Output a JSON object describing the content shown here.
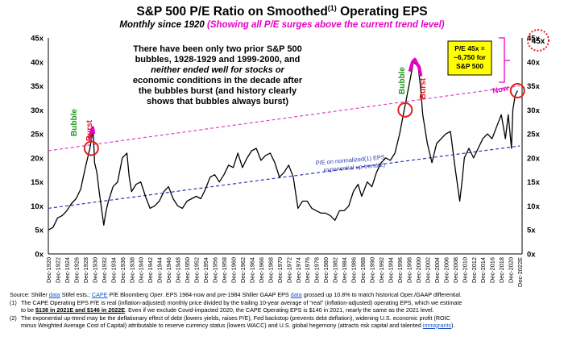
{
  "title": "S&P 500 P/E Ratio on Smoothed",
  "title_sup": "(1)",
  "title_end": " Operating EPS",
  "subtitle_black": "Monthly since 1920 ",
  "subtitle_pink": "(Showing all P/E surges above the current trend level)",
  "colors": {
    "line": "#000000",
    "bubble": "#e600c8",
    "trend": "#e040c8",
    "normalized": "#2a3ab0",
    "circle": "#e02020",
    "burst": "#e02020",
    "bubbleText": "#1a9a1a",
    "box": "#ffff00"
  },
  "chart_data": {
    "type": "line",
    "ylim": [
      0,
      45
    ],
    "yticks": [
      "0x",
      "5x",
      "10x",
      "15x",
      "20x",
      "25x",
      "30x",
      "35x",
      "40x",
      "45x"
    ],
    "xticks": [
      "Dec-1920",
      "Dec-1922",
      "Dec-1924",
      "Dec-1926",
      "Dec-1928",
      "Dec-1930",
      "Dec-1932",
      "Dec-1934",
      "Dec-1936",
      "Dec-1938",
      "Dec-1940",
      "Dec-1942",
      "Dec-1944",
      "Dec-1946",
      "Dec-1948",
      "Dec-1950",
      "Dec-1952",
      "Dec-1954",
      "Dec-1956",
      "Dec-1958",
      "Dec-1960",
      "Dec-1962",
      "Dec-1964",
      "Dec-1966",
      "Dec-1968",
      "Dec-1970",
      "Dec-1972",
      "Dec-1974",
      "Dec-1976",
      "Dec-1978",
      "Dec-1980",
      "Dec-1982",
      "Dec-1984",
      "Dec-1986",
      "Dec-1988",
      "Dec-1990",
      "Dec-1992",
      "Dec-1994",
      "Dec-1996",
      "Dec-1998",
      "Dec-2000",
      "Dec-2002",
      "Dec-2004",
      "Dec-2006",
      "Dec-2008",
      "Dec-2010",
      "Dec-2012",
      "Dec-2014",
      "Dec-2016",
      "Dec-2018",
      "Dec-2020",
      "Dec-2022E"
    ],
    "series": [
      {
        "values": [
          [
            1920,
            5
          ],
          [
            1921,
            5.5
          ],
          [
            1922,
            7.5
          ],
          [
            1923,
            8
          ],
          [
            1924,
            9
          ],
          [
            1925,
            10.5
          ],
          [
            1926,
            11.5
          ],
          [
            1927,
            13.5
          ],
          [
            1928,
            18
          ],
          [
            1929,
            22
          ],
          [
            1929.7,
            26
          ],
          [
            1930,
            19
          ],
          [
            1930.5,
            17
          ],
          [
            1931,
            13
          ],
          [
            1932,
            6
          ],
          [
            1932.5,
            9
          ],
          [
            1933,
            11
          ],
          [
            1934,
            14
          ],
          [
            1935,
            15
          ],
          [
            1936,
            20
          ],
          [
            1937,
            21
          ],
          [
            1937.5,
            16
          ],
          [
            1938,
            13
          ],
          [
            1939,
            14.5
          ],
          [
            1940,
            15
          ],
          [
            1941,
            12
          ],
          [
            1942,
            9.5
          ],
          [
            1943,
            10
          ],
          [
            1944,
            11
          ],
          [
            1945,
            13
          ],
          [
            1946,
            14
          ],
          [
            1947,
            11.5
          ],
          [
            1948,
            10
          ],
          [
            1949,
            9.5
          ],
          [
            1950,
            11
          ],
          [
            1951,
            11.5
          ],
          [
            1952,
            12
          ],
          [
            1953,
            11.5
          ],
          [
            1954,
            13.5
          ],
          [
            1955,
            16
          ],
          [
            1956,
            16.5
          ],
          [
            1957,
            15
          ],
          [
            1958,
            16.5
          ],
          [
            1959,
            18.5
          ],
          [
            1960,
            18
          ],
          [
            1961,
            21
          ],
          [
            1962,
            18
          ],
          [
            1963,
            20
          ],
          [
            1964,
            21.5
          ],
          [
            1965,
            22
          ],
          [
            1966,
            19.5
          ],
          [
            1967,
            20.5
          ],
          [
            1968,
            21
          ],
          [
            1969,
            19
          ],
          [
            1970,
            16
          ],
          [
            1971,
            17
          ],
          [
            1972,
            18.5
          ],
          [
            1973,
            16
          ],
          [
            1974,
            9.5
          ],
          [
            1975,
            11
          ],
          [
            1976,
            11
          ],
          [
            1977,
            9.5
          ],
          [
            1978,
            9
          ],
          [
            1979,
            8.5
          ],
          [
            1980,
            8.5
          ],
          [
            1981,
            8
          ],
          [
            1982,
            7
          ],
          [
            1983,
            9
          ],
          [
            1984,
            9
          ],
          [
            1985,
            10
          ],
          [
            1986,
            13
          ],
          [
            1987,
            14.5
          ],
          [
            1987.8,
            12
          ],
          [
            1988,
            12.5
          ],
          [
            1989,
            15
          ],
          [
            1990,
            14
          ],
          [
            1991,
            17
          ],
          [
            1992,
            19
          ],
          [
            1993,
            20
          ],
          [
            1994,
            19.5
          ],
          [
            1995,
            21
          ],
          [
            1996,
            25
          ],
          [
            1997,
            30
          ],
          [
            1998,
            35
          ],
          [
            1999,
            40
          ],
          [
            2000,
            39
          ],
          [
            2000.5,
            35
          ],
          [
            2001,
            29
          ],
          [
            2002,
            23
          ],
          [
            2003,
            19
          ],
          [
            2004,
            23
          ],
          [
            2005,
            24
          ],
          [
            2006,
            25
          ],
          [
            2007,
            25.5
          ],
          [
            2008,
            18
          ],
          [
            2009,
            11
          ],
          [
            2009.5,
            15
          ],
          [
            2010,
            20
          ],
          [
            2011,
            22
          ],
          [
            2012,
            20
          ],
          [
            2013,
            22
          ],
          [
            2014,
            24
          ],
          [
            2015,
            25
          ],
          [
            2016,
            24
          ],
          [
            2017,
            26.5
          ],
          [
            2018,
            29
          ],
          [
            2018.9,
            24
          ],
          [
            2019.5,
            29
          ],
          [
            2020.2,
            22
          ],
          [
            2020.5,
            30
          ],
          [
            2021,
            33
          ],
          [
            2021.5,
            34
          ]
        ]
      }
    ],
    "trend_line": {
      "x": [
        1920,
        2022
      ],
      "y": [
        21.5,
        35
      ]
    },
    "normalized_line": {
      "x": [
        1920,
        2022
      ],
      "y": [
        9.5,
        22.5
      ]
    },
    "bubble_1929": [
      [
        1928.8,
        24
      ],
      [
        1929.3,
        25.5
      ],
      [
        1929.6,
        26.3
      ],
      [
        1929.8,
        25
      ]
    ],
    "bubble_2000": [
      [
        1998.2,
        38
      ],
      [
        1998.8,
        40
      ],
      [
        1999.3,
        40.5
      ],
      [
        1999.8,
        39.5
      ],
      [
        2000.2,
        39
      ],
      [
        2000.6,
        37
      ]
    ],
    "circles": [
      [
        1929.3,
        22
      ],
      [
        1997.2,
        30
      ],
      [
        2021.5,
        34
      ]
    ],
    "annotations": {
      "main": [
        "There have been only two prior S&P 500",
        "bubbles, 1928-1929 and 1999-2000, and",
        "neither ended well for stocks or",
        "economic conditions in the decade after",
        "the bubbles burst (and history clearly",
        "shows that bubbles always burst)"
      ],
      "bubble": "Bubble",
      "burst": "Burst",
      "now": "Now",
      "box": [
        "P/E 45x =",
        "~6,750 for",
        "S&P 500"
      ],
      "normalized": [
        "P/E on normalized",
        "EPS",
        "exponential up-trend"
      ],
      "normalized_sup1": "(1)",
      "normalized_sup2": "(2)",
      "target": "45x"
    }
  },
  "footer": {
    "source_a": "Source: Shiller ",
    "source_link1": "data",
    "source_b": " Stifel ests.; ",
    "source_link2": "CAPE",
    "source_c": " P/E Bloomberg ",
    "source_oper": "Oper",
    "source_d": ". EPS 1984-now and pre-1984 Shiller GAAP EPS ",
    "source_link3": "data",
    "source_e": " grossed up 10.8% to match historical Oper./GAAP differential.",
    "note1_num": "(1)",
    "note1_a": "The CAPE Operating EPS P/E  is real (inflation-adjusted) monthly price divided by the trailing 10-year average of “real” (inflation-adjusted) operating EPS, which we estimate",
    "note1_b": "to be ",
    "note1_bold": "$138 in 2021E and $146 in 2022E",
    "note1_c": ". Even if we exclude Covid-impacted 2020, the CAPE Operating EPS is $140 in 2021, nearly the same as the 2021 level.",
    "note2_num": "(2)",
    "note2_a": "The exponential up-trend may be the deflationary effect of debt (lowers yields, raises P/E), Fed backstop (prevents debt deflation), widening U.S. economic profit (ROIC",
    "note2_b": "minus Weighted Average Cost of Capital) attributable to reserve currency status (lowers WACC) and U.S. global hegemony (attracts risk capital and talented ",
    "note2_link": "immigrants",
    "note2_c": ")."
  }
}
